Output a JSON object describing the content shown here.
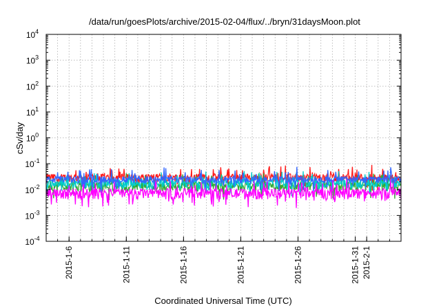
{
  "chart_data": {
    "type": "line",
    "title": "/data/run/goesPlots/archive/2015-02-04/flux/../bryn/31daysMoon.plot",
    "xlabel": "Coordinated Universal Time (UTC)",
    "ylabel": "cSv/day",
    "y_scale": "log",
    "ylim": [
      0.0001,
      10000
    ],
    "y_ticks": [
      {
        "base": "10",
        "exp": "-4"
      },
      {
        "base": "10",
        "exp": "-3"
      },
      {
        "base": "10",
        "exp": "-2"
      },
      {
        "base": "10",
        "exp": "-1"
      },
      {
        "base": "10",
        "exp": "0"
      },
      {
        "base": "10",
        "exp": "1"
      },
      {
        "base": "10",
        "exp": "2"
      },
      {
        "base": "10",
        "exp": "3"
      },
      {
        "base": "10",
        "exp": "4"
      }
    ],
    "xlim": [
      "2015-01-04",
      "2015-02-04"
    ],
    "x_ticks": [
      "2015-1-6",
      "2015-1-11",
      "2015-1-16",
      "2015-1-21",
      "2015-1-26",
      "2015-1-31",
      "2015-2-1"
    ],
    "grid": true,
    "series": [
      {
        "color": "#ff1a1a",
        "median": 0.03,
        "spread": 0.35
      },
      {
        "color": "#33aa33",
        "median": 0.014,
        "spread": 0.4
      },
      {
        "color": "#00cccc",
        "median": 0.018,
        "spread": 0.35
      },
      {
        "color": "#3366ff",
        "median": 0.025,
        "spread": 0.3
      },
      {
        "color": "#ff00ff",
        "median": 0.0075,
        "spread": 0.45
      }
    ]
  }
}
